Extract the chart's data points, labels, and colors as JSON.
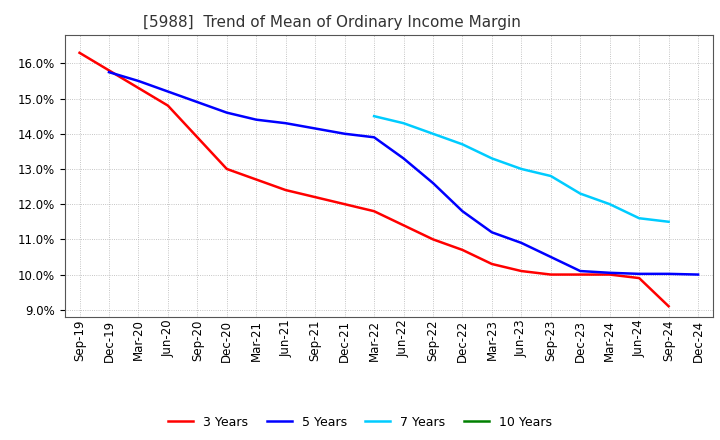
{
  "title": "[5988]  Trend of Mean of Ordinary Income Margin",
  "background_color": "#ffffff",
  "plot_bg_color": "#ffffff",
  "grid_color": "#aaaaaa",
  "x_labels": [
    "Sep-19",
    "Dec-19",
    "Mar-20",
    "Jun-20",
    "Sep-20",
    "Dec-20",
    "Mar-21",
    "Jun-21",
    "Sep-21",
    "Dec-21",
    "Mar-22",
    "Jun-22",
    "Sep-22",
    "Dec-22",
    "Mar-23",
    "Jun-23",
    "Sep-23",
    "Dec-23",
    "Mar-24",
    "Jun-24",
    "Sep-24",
    "Dec-24"
  ],
  "series": [
    {
      "label": "3 Years",
      "color": "#ff0000",
      "data_x": [
        "Sep-19",
        "Dec-19",
        "Mar-20",
        "Jun-20",
        "Sep-20",
        "Dec-20",
        "Mar-21",
        "Jun-21",
        "Sep-21",
        "Dec-21",
        "Mar-22",
        "Jun-22",
        "Sep-22",
        "Dec-22",
        "Mar-23",
        "Jun-23",
        "Sep-23",
        "Dec-23",
        "Mar-24",
        "Jun-24",
        "Sep-24"
      ],
      "data_y": [
        16.3,
        15.8,
        15.3,
        14.8,
        13.9,
        13.0,
        12.7,
        12.4,
        12.2,
        12.0,
        11.8,
        11.4,
        11.0,
        10.7,
        10.3,
        10.1,
        10.0,
        10.0,
        10.0,
        9.9,
        9.1
      ]
    },
    {
      "label": "5 Years",
      "color": "#0000ff",
      "data_x": [
        "Dec-19",
        "Mar-20",
        "Jun-20",
        "Sep-20",
        "Dec-20",
        "Mar-21",
        "Jun-21",
        "Sep-21",
        "Dec-21",
        "Mar-22",
        "Jun-22",
        "Sep-22",
        "Dec-22",
        "Mar-23",
        "Jun-23",
        "Sep-23",
        "Dec-23",
        "Mar-24",
        "Jun-24",
        "Sep-24",
        "Dec-24"
      ],
      "data_y": [
        15.75,
        15.5,
        15.2,
        14.9,
        14.6,
        14.4,
        14.3,
        14.15,
        14.0,
        13.9,
        13.3,
        12.6,
        11.8,
        11.2,
        10.9,
        10.5,
        10.1,
        10.05,
        10.02,
        10.02,
        10.0
      ]
    },
    {
      "label": "7 Years",
      "color": "#00ccff",
      "data_x": [
        "Mar-22",
        "Jun-22",
        "Sep-22",
        "Dec-22",
        "Mar-23",
        "Jun-23",
        "Sep-23",
        "Dec-23",
        "Mar-24",
        "Jun-24",
        "Sep-24"
      ],
      "data_y": [
        14.5,
        14.3,
        14.0,
        13.7,
        13.3,
        13.0,
        12.8,
        12.3,
        12.0,
        11.6,
        11.5
      ]
    },
    {
      "label": "10 Years",
      "color": "#008000",
      "data_x": [],
      "data_y": []
    }
  ],
  "ylim": [
    8.8,
    16.8
  ],
  "yticks": [
    9.0,
    10.0,
    11.0,
    12.0,
    13.0,
    14.0,
    15.0,
    16.0
  ],
  "title_fontsize": 11,
  "tick_fontsize": 8.5,
  "legend_fontsize": 9,
  "linewidth": 1.8
}
